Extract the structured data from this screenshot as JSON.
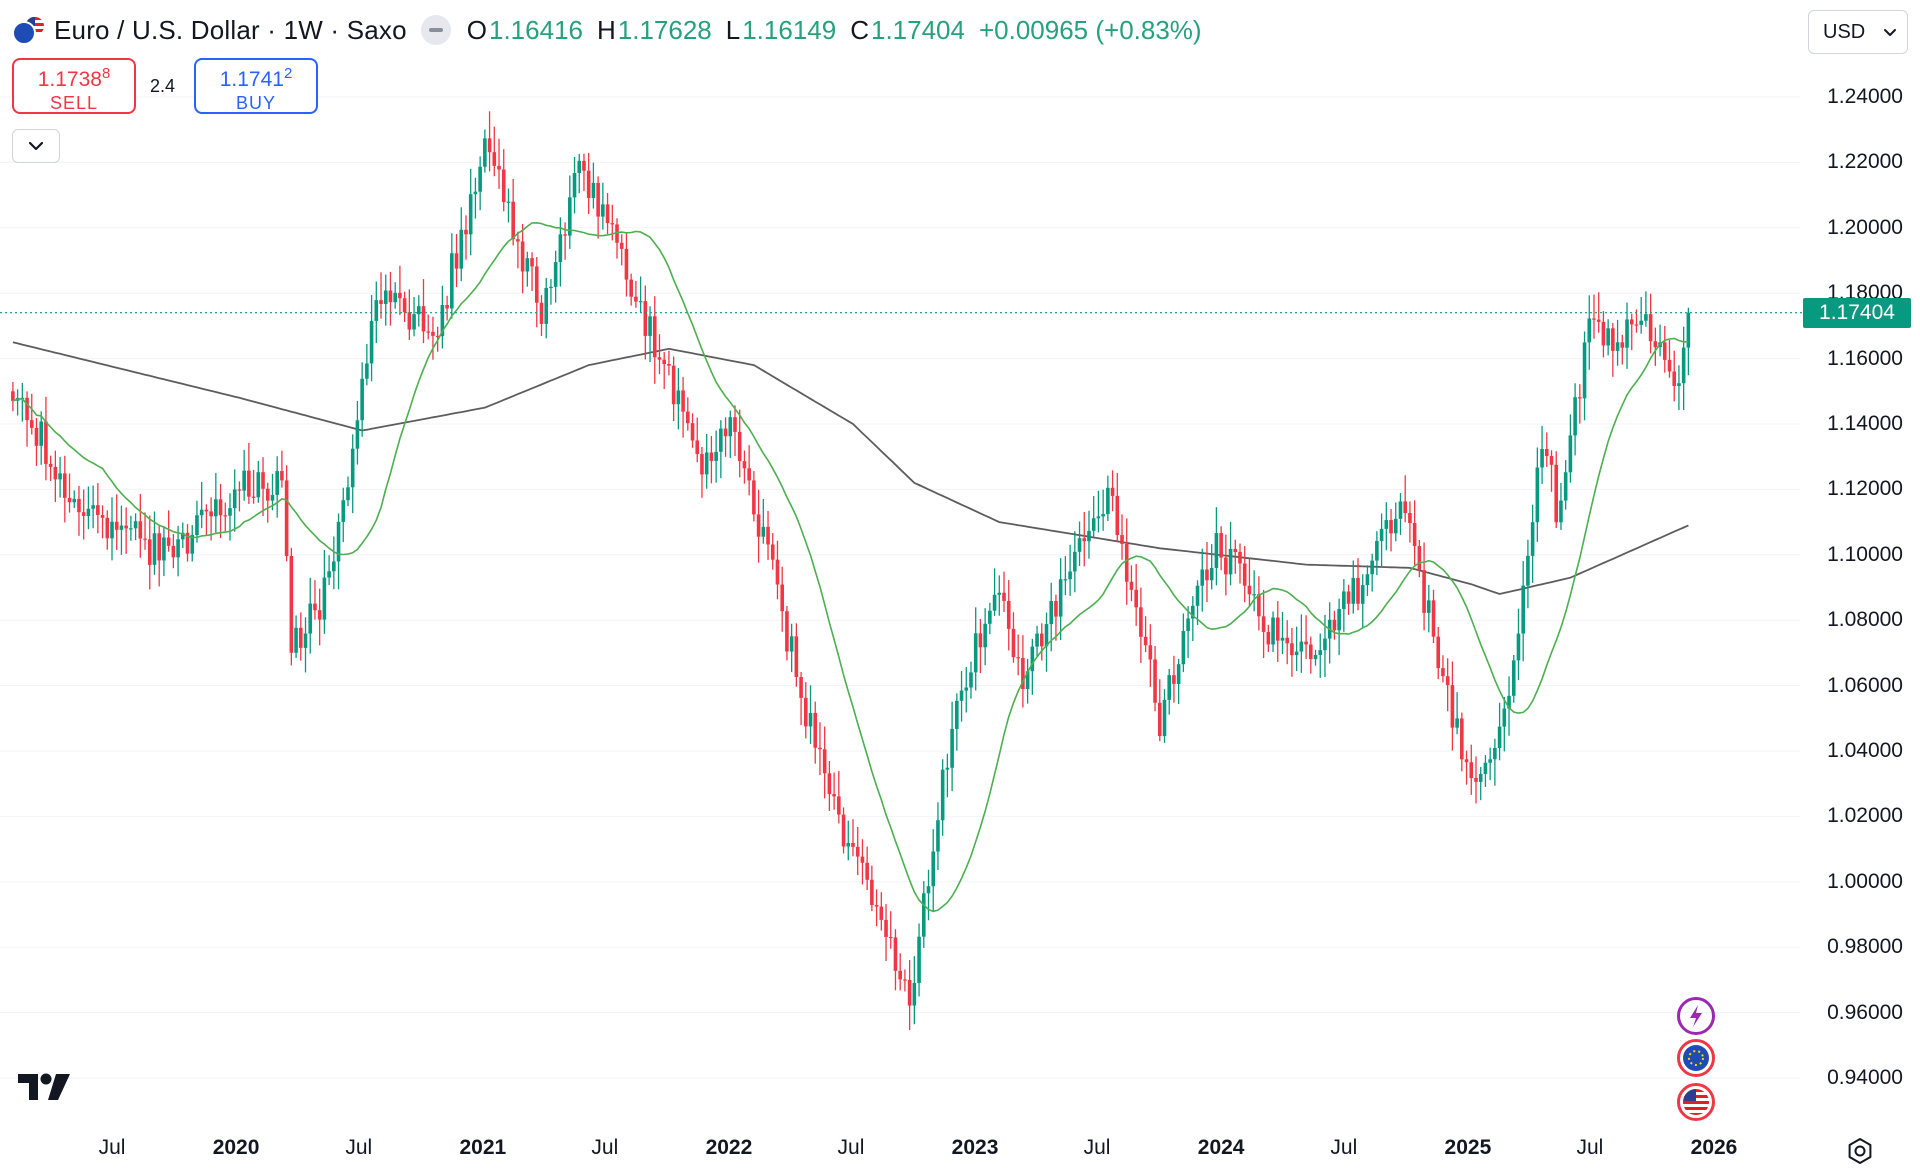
{
  "header": {
    "symbol_title": "Euro / U.S. Dollar · 1W · Saxo",
    "ohlc": [
      {
        "label": "O",
        "value": "1.16416"
      },
      {
        "label": "H",
        "value": "1.17628"
      },
      {
        "label": "L",
        "value": "1.16149"
      },
      {
        "label": "C",
        "value": "1.17404"
      }
    ],
    "change": "+0.00965 (+0.83%)",
    "currency": "USD"
  },
  "trade": {
    "sell_price": "1.1738",
    "sell_price_sup": "8",
    "sell_label": "SELL",
    "spread": "2.4",
    "buy_price": "1.1741",
    "buy_price_sup": "2",
    "buy_label": "BUY"
  },
  "last_price_label": "1.17404",
  "icons": {
    "collapse": "chevron-down-icon",
    "currency_dropdown": "chevron-down-icon",
    "logo": "tradingview-logo",
    "settings": "gear-icon",
    "side": [
      "flash-icon",
      "eu-flag-icon",
      "us-flag-icon"
    ]
  },
  "colors": {
    "up": "#089981",
    "down": "#f23645",
    "ma_fast": "#4caf50",
    "ma_slow": "#5d5d5d",
    "accent_buy": "#2962ff"
  },
  "chart_data": {
    "type": "candlestick",
    "symbol": "EURUSD",
    "interval": "1W",
    "ylim": [
      0.93,
      1.25
    ],
    "y_ticks": [
      "1.24000",
      "1.22000",
      "1.20000",
      "1.18000",
      "1.16000",
      "1.14000",
      "1.12000",
      "1.10000",
      "1.08000",
      "1.06000",
      "1.04000",
      "1.02000",
      "1.00000",
      "0.98000",
      "0.96000",
      "0.94000"
    ],
    "x_ticks": [
      {
        "label": "Jul",
        "date": "2019-07-01",
        "year": false
      },
      {
        "label": "2020",
        "date": "2020-01-01",
        "year": true
      },
      {
        "label": "Jul",
        "date": "2020-07-01",
        "year": false
      },
      {
        "label": "2021",
        "date": "2021-01-01",
        "year": true
      },
      {
        "label": "Jul",
        "date": "2021-07-01",
        "year": false
      },
      {
        "label": "2022",
        "date": "2022-01-01",
        "year": true
      },
      {
        "label": "Jul",
        "date": "2022-07-01",
        "year": false
      },
      {
        "label": "2023",
        "date": "2023-01-01",
        "year": true
      },
      {
        "label": "Jul",
        "date": "2023-07-01",
        "year": false
      },
      {
        "label": "2024",
        "date": "2024-01-01",
        "year": true
      },
      {
        "label": "Jul",
        "date": "2024-07-01",
        "year": false
      },
      {
        "label": "2025",
        "date": "2025-01-01",
        "year": true
      },
      {
        "label": "Jul",
        "date": "2025-07-01",
        "year": false
      },
      {
        "label": "2026",
        "date": "2026-01-01",
        "year": true
      }
    ],
    "last_price": 1.17404,
    "price_path": [
      [
        "2019-02-04",
        1.15
      ],
      [
        "2019-05-27",
        1.11
      ],
      [
        "2019-09-30",
        1.1
      ],
      [
        "2019-12-30",
        1.12
      ],
      [
        "2020-03-09",
        1.12
      ],
      [
        "2020-03-23",
        1.07
      ],
      [
        "2020-05-18",
        1.09
      ],
      [
        "2020-07-27",
        1.18
      ],
      [
        "2020-10-26",
        1.17
      ],
      [
        "2021-01-04",
        1.225
      ],
      [
        "2021-03-29",
        1.175
      ],
      [
        "2021-05-24",
        1.22
      ],
      [
        "2021-11-22",
        1.13
      ],
      [
        "2022-01-10",
        1.14
      ],
      [
        "2022-05-09",
        1.04
      ],
      [
        "2022-07-11",
        1.005
      ],
      [
        "2022-09-26",
        0.965
      ],
      [
        "2022-11-28",
        1.05
      ],
      [
        "2023-01-30",
        1.09
      ],
      [
        "2023-03-13",
        1.06
      ],
      [
        "2023-07-17",
        1.12
      ],
      [
        "2023-10-02",
        1.05
      ],
      [
        "2023-12-25",
        1.105
      ],
      [
        "2024-04-15",
        1.065
      ],
      [
        "2024-06-10",
        1.075
      ],
      [
        "2024-09-23",
        1.115
      ],
      [
        "2025-01-13",
        1.025
      ],
      [
        "2025-02-24",
        1.05
      ],
      [
        "2025-04-21",
        1.135
      ],
      [
        "2025-05-12",
        1.115
      ],
      [
        "2025-07-07",
        1.175
      ],
      [
        "2025-08-04",
        1.165
      ],
      [
        "2025-09-15",
        1.175
      ],
      [
        "2025-11-03",
        1.155
      ],
      [
        "2025-11-17",
        1.16
      ],
      [
        "2025-11-24",
        1.174
      ]
    ],
    "ma_slow_path": [
      [
        "2019-02-04",
        1.165
      ],
      [
        "2020-01-06",
        1.148
      ],
      [
        "2020-07-06",
        1.138
      ],
      [
        "2021-01-04",
        1.145
      ],
      [
        "2021-06-07",
        1.158
      ],
      [
        "2021-10-04",
        1.163
      ],
      [
        "2022-02-07",
        1.158
      ],
      [
        "2022-07-04",
        1.14
      ],
      [
        "2022-10-03",
        1.122
      ],
      [
        "2023-02-06",
        1.11
      ],
      [
        "2023-10-02",
        1.102
      ],
      [
        "2024-05-06",
        1.097
      ],
      [
        "2024-10-07",
        1.096
      ],
      [
        "2025-01-06",
        1.091
      ],
      [
        "2025-02-17",
        1.088
      ],
      [
        "2025-06-02",
        1.093
      ],
      [
        "2025-11-24",
        1.109
      ]
    ]
  }
}
